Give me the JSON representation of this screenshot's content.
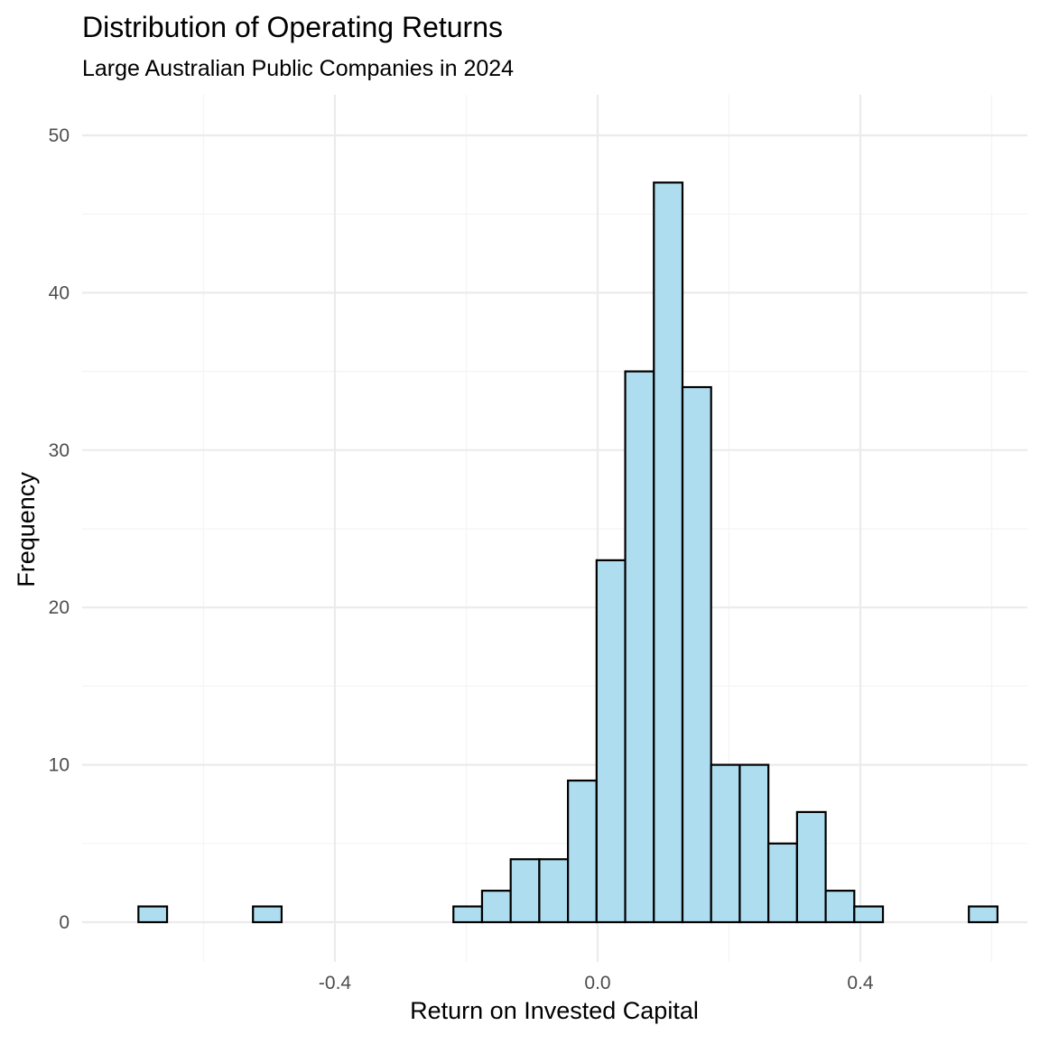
{
  "chart_data": {
    "type": "bar",
    "title": "Distribution of Operating Returns",
    "subtitle": "Large Australian Public Companies in 2024",
    "xlabel": "Return on Invested Capital",
    "ylabel": "Frequency",
    "xlim": [
      -0.7,
      0.6
    ],
    "ylim": [
      0,
      52
    ],
    "x_ticks": [
      {
        "value": -0.4,
        "label": "-0.4"
      },
      {
        "value": 0.0,
        "label": "0.0"
      },
      {
        "value": 0.4,
        "label": "0.4"
      }
    ],
    "y_ticks": [
      {
        "value": 0,
        "label": "0"
      },
      {
        "value": 10,
        "label": "10"
      },
      {
        "value": 20,
        "label": "20"
      },
      {
        "value": 30,
        "label": "30"
      },
      {
        "value": 40,
        "label": "40"
      },
      {
        "value": 50,
        "label": "50"
      }
    ],
    "x_minor_gridlines": [
      -0.6,
      -0.2,
      0.2,
      0.6
    ],
    "y_minor_gridlines": [
      5,
      15,
      25,
      35,
      45
    ],
    "grid": true,
    "bin_width": 0.0436,
    "bins": [
      {
        "start": -0.6992,
        "end": -0.6556,
        "count": 1
      },
      {
        "start": -0.6556,
        "end": -0.612,
        "count": 0
      },
      {
        "start": -0.612,
        "end": -0.5684,
        "count": 0
      },
      {
        "start": -0.5684,
        "end": -0.5248,
        "count": 0
      },
      {
        "start": -0.5248,
        "end": -0.4812,
        "count": 1
      },
      {
        "start": -0.4812,
        "end": -0.4376,
        "count": 0
      },
      {
        "start": -0.4376,
        "end": -0.394,
        "count": 0
      },
      {
        "start": -0.394,
        "end": -0.3504,
        "count": 0
      },
      {
        "start": -0.3504,
        "end": -0.3068,
        "count": 0
      },
      {
        "start": -0.3068,
        "end": -0.2632,
        "count": 0
      },
      {
        "start": -0.2632,
        "end": -0.2196,
        "count": 0
      },
      {
        "start": -0.2196,
        "end": -0.176,
        "count": 1
      },
      {
        "start": -0.176,
        "end": -0.1324,
        "count": 2
      },
      {
        "start": -0.1324,
        "end": -0.0888,
        "count": 4
      },
      {
        "start": -0.0888,
        "end": -0.0452,
        "count": 4
      },
      {
        "start": -0.0452,
        "end": -0.0016,
        "count": 9
      },
      {
        "start": -0.0016,
        "end": 0.042,
        "count": 23
      },
      {
        "start": 0.042,
        "end": 0.0856,
        "count": 35
      },
      {
        "start": 0.0856,
        "end": 0.1292,
        "count": 47
      },
      {
        "start": 0.1292,
        "end": 0.1728,
        "count": 34
      },
      {
        "start": 0.1728,
        "end": 0.2164,
        "count": 10
      },
      {
        "start": 0.2164,
        "end": 0.26,
        "count": 10
      },
      {
        "start": 0.26,
        "end": 0.3036,
        "count": 5
      },
      {
        "start": 0.3036,
        "end": 0.3472,
        "count": 7
      },
      {
        "start": 0.3472,
        "end": 0.3908,
        "count": 2
      },
      {
        "start": 0.3908,
        "end": 0.4344,
        "count": 1
      },
      {
        "start": 0.4344,
        "end": 0.478,
        "count": 0
      },
      {
        "start": 0.478,
        "end": 0.5216,
        "count": 0
      },
      {
        "start": 0.5216,
        "end": 0.5652,
        "count": 0
      },
      {
        "start": 0.5652,
        "end": 0.6088,
        "count": 1
      }
    ],
    "colors": {
      "bar_fill": "#ADDDEF",
      "bar_stroke": "#000000",
      "grid_major": "#EBEBEB",
      "grid_minor": "#F4F4F4",
      "tick_text": "#4D4D4D",
      "text": "#000000"
    }
  }
}
